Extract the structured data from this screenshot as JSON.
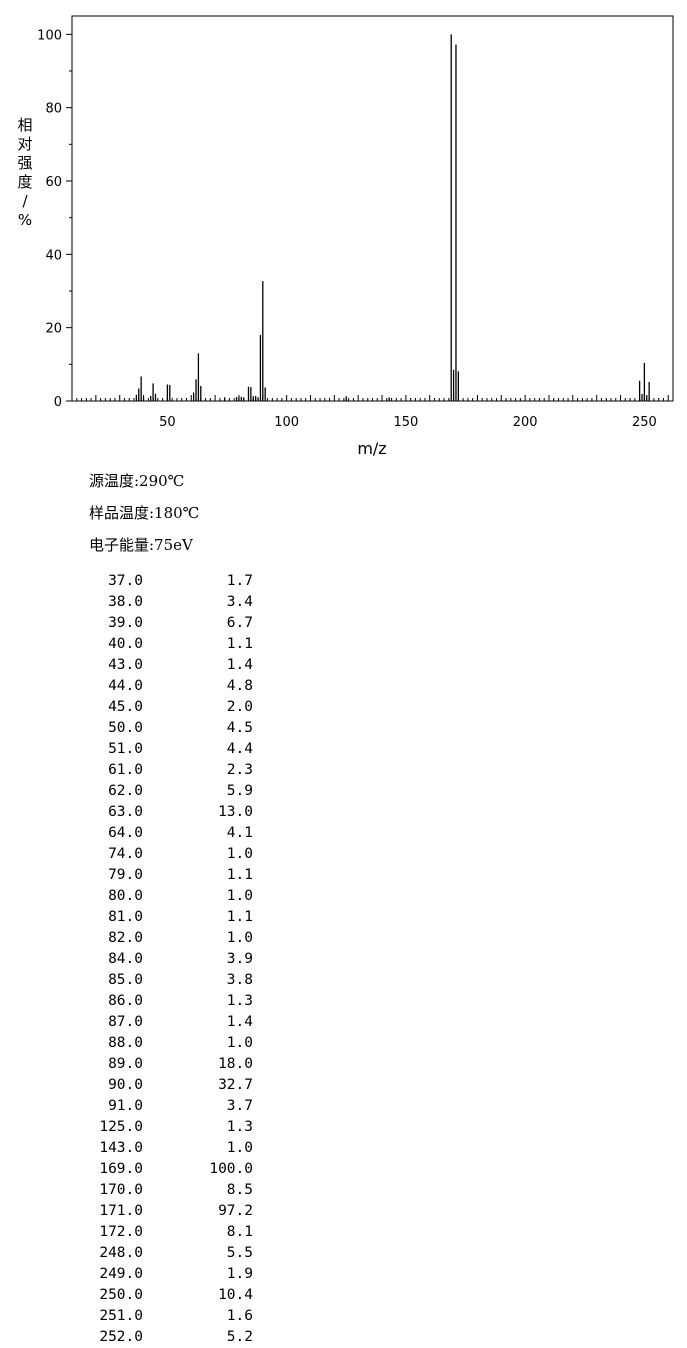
{
  "chart_data": {
    "type": "bar",
    "xlabel": "m/z",
    "ylabel": "相对强度/%",
    "xlim": [
      10,
      262
    ],
    "ylim": [
      0,
      105
    ],
    "xticks": [
      50,
      100,
      150,
      200,
      250
    ],
    "yticks": [
      0,
      20,
      40,
      60,
      80,
      100
    ],
    "peaks": [
      {
        "mz": "37.0",
        "intensity": "1.7"
      },
      {
        "mz": "38.0",
        "intensity": "3.4"
      },
      {
        "mz": "39.0",
        "intensity": "6.7"
      },
      {
        "mz": "40.0",
        "intensity": "1.1"
      },
      {
        "mz": "43.0",
        "intensity": "1.4"
      },
      {
        "mz": "44.0",
        "intensity": "4.8"
      },
      {
        "mz": "45.0",
        "intensity": "2.0"
      },
      {
        "mz": "50.0",
        "intensity": "4.5"
      },
      {
        "mz": "51.0",
        "intensity": "4.4"
      },
      {
        "mz": "61.0",
        "intensity": "2.3"
      },
      {
        "mz": "62.0",
        "intensity": "5.9"
      },
      {
        "mz": "63.0",
        "intensity": "13.0"
      },
      {
        "mz": "64.0",
        "intensity": "4.1"
      },
      {
        "mz": "74.0",
        "intensity": "1.0"
      },
      {
        "mz": "79.0",
        "intensity": "1.1"
      },
      {
        "mz": "80.0",
        "intensity": "1.0"
      },
      {
        "mz": "81.0",
        "intensity": "1.1"
      },
      {
        "mz": "82.0",
        "intensity": "1.0"
      },
      {
        "mz": "84.0",
        "intensity": "3.9"
      },
      {
        "mz": "85.0",
        "intensity": "3.8"
      },
      {
        "mz": "86.0",
        "intensity": "1.3"
      },
      {
        "mz": "87.0",
        "intensity": "1.4"
      },
      {
        "mz": "88.0",
        "intensity": "1.0"
      },
      {
        "mz": "89.0",
        "intensity": "18.0"
      },
      {
        "mz": "90.0",
        "intensity": "32.7"
      },
      {
        "mz": "91.0",
        "intensity": "3.7"
      },
      {
        "mz": "125.0",
        "intensity": "1.3"
      },
      {
        "mz": "143.0",
        "intensity": "1.0"
      },
      {
        "mz": "169.0",
        "intensity": "100.0"
      },
      {
        "mz": "170.0",
        "intensity": "8.5"
      },
      {
        "mz": "171.0",
        "intensity": "97.2"
      },
      {
        "mz": "172.0",
        "intensity": "8.1"
      },
      {
        "mz": "248.0",
        "intensity": "5.5"
      },
      {
        "mz": "249.0",
        "intensity": "1.9"
      },
      {
        "mz": "250.0",
        "intensity": "10.4"
      },
      {
        "mz": "251.0",
        "intensity": "1.6"
      },
      {
        "mz": "252.0",
        "intensity": "5.2"
      }
    ]
  },
  "conditions": [
    {
      "text": "源温度:290℃"
    },
    {
      "text": "样品温度:180℃"
    },
    {
      "text": "电子能量:75eV"
    }
  ]
}
